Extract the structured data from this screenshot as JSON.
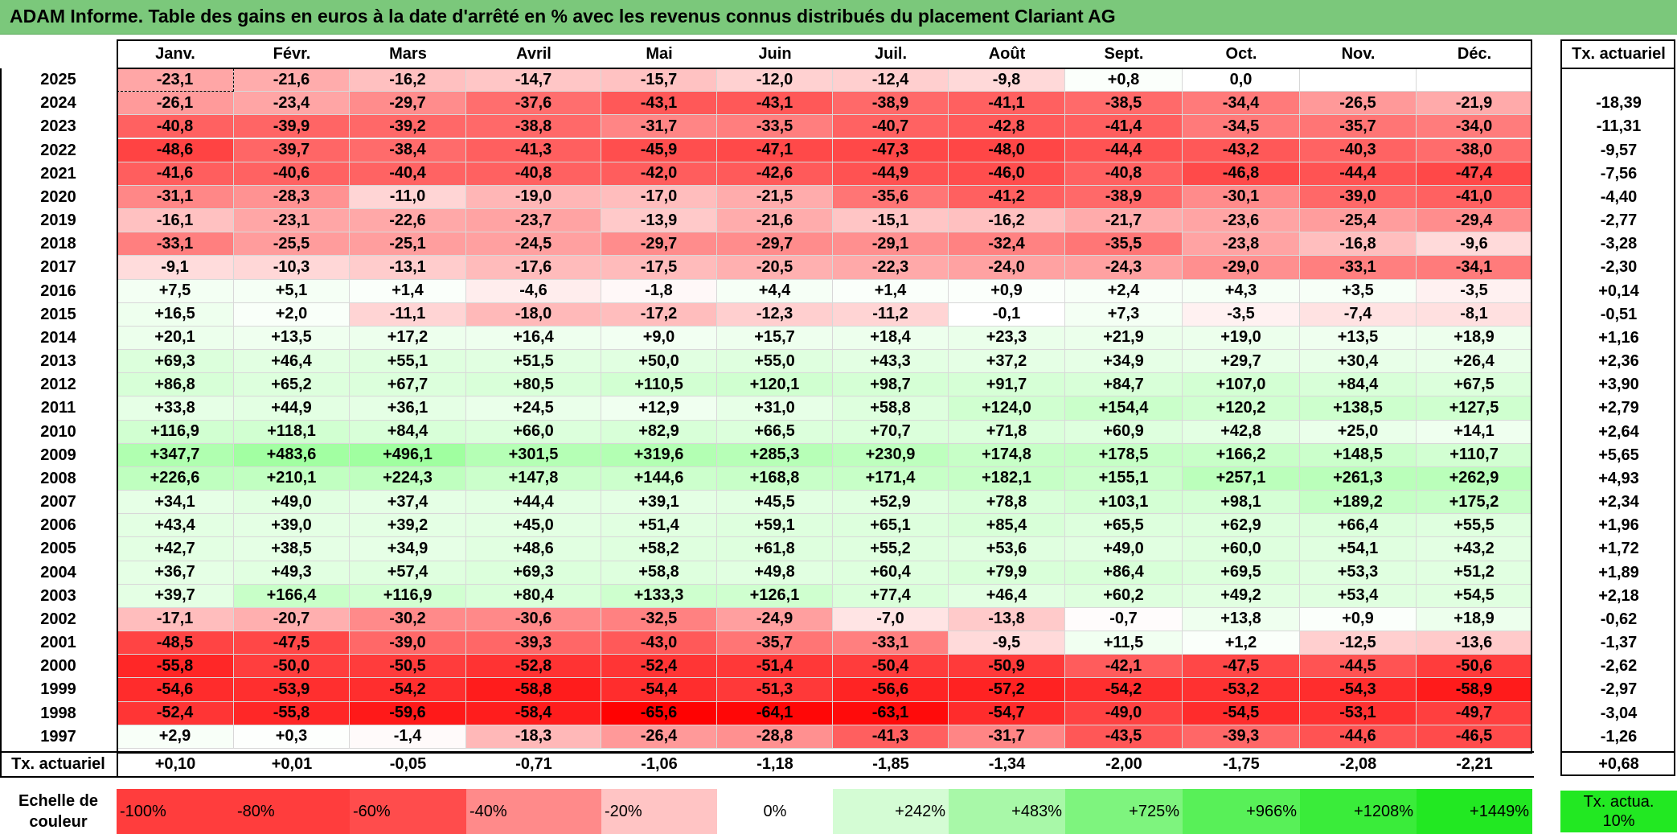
{
  "title": "ADAM Informe. Table des gains en euros à la date d'arrêté en % avec les revenus connus distribués du placement Clariant AG",
  "chart_data": {
    "type": "heatmap",
    "title": "ADAM Informe. Table des gains en euros à la date d'arrêté en % avec les revenus connus distribués du placement Clariant AG",
    "columns": [
      "Janv.",
      "Févr.",
      "Mars",
      "Avril",
      "Mai",
      "Juin",
      "Juil.",
      "Août",
      "Sept.",
      "Oct.",
      "Nov.",
      "Déc."
    ],
    "rate_column_label": "Tx. actuariel",
    "rows": [
      {
        "year": "2025",
        "values": [
          "-23,1",
          "-21,6",
          "-16,2",
          "-14,7",
          "-15,7",
          "-12,0",
          "-12,4",
          "-9,8",
          "+0,8",
          "0,0",
          "",
          ""
        ],
        "rate": ""
      },
      {
        "year": "2024",
        "values": [
          "-26,1",
          "-23,4",
          "-29,7",
          "-37,6",
          "-43,1",
          "-43,1",
          "-38,9",
          "-41,1",
          "-38,5",
          "-34,4",
          "-26,5",
          "-21,9"
        ],
        "rate": "-18,39"
      },
      {
        "year": "2023",
        "values": [
          "-40,8",
          "-39,9",
          "-39,2",
          "-38,8",
          "-31,7",
          "-33,5",
          "-40,7",
          "-42,8",
          "-41,4",
          "-34,5",
          "-35,7",
          "-34,0"
        ],
        "rate": "-11,31"
      },
      {
        "year": "2022",
        "values": [
          "-48,6",
          "-39,7",
          "-38,4",
          "-41,3",
          "-45,9",
          "-47,1",
          "-47,3",
          "-48,0",
          "-44,4",
          "-43,2",
          "-40,3",
          "-38,0"
        ],
        "rate": "-9,57"
      },
      {
        "year": "2021",
        "values": [
          "-41,6",
          "-40,6",
          "-40,4",
          "-40,8",
          "-42,0",
          "-42,6",
          "-44,9",
          "-46,0",
          "-40,8",
          "-46,8",
          "-44,4",
          "-47,4"
        ],
        "rate": "-7,56"
      },
      {
        "year": "2020",
        "values": [
          "-31,1",
          "-28,3",
          "-11,0",
          "-19,0",
          "-17,0",
          "-21,5",
          "-35,6",
          "-41,2",
          "-38,9",
          "-30,1",
          "-39,0",
          "-41,0"
        ],
        "rate": "-4,40"
      },
      {
        "year": "2019",
        "values": [
          "-16,1",
          "-23,1",
          "-22,6",
          "-23,7",
          "-13,9",
          "-21,6",
          "-15,1",
          "-16,2",
          "-21,7",
          "-23,6",
          "-25,4",
          "-29,4"
        ],
        "rate": "-2,77"
      },
      {
        "year": "2018",
        "values": [
          "-33,1",
          "-25,5",
          "-25,1",
          "-24,5",
          "-29,7",
          "-29,7",
          "-29,1",
          "-32,4",
          "-35,5",
          "-23,8",
          "-16,8",
          "-9,6"
        ],
        "rate": "-3,28"
      },
      {
        "year": "2017",
        "values": [
          "-9,1",
          "-10,3",
          "-13,1",
          "-17,6",
          "-17,5",
          "-20,5",
          "-22,3",
          "-24,0",
          "-24,3",
          "-29,0",
          "-33,1",
          "-34,1"
        ],
        "rate": "-2,30"
      },
      {
        "year": "2016",
        "values": [
          "+7,5",
          "+5,1",
          "+1,4",
          "-4,6",
          "-1,8",
          "+4,4",
          "+1,4",
          "+0,9",
          "+2,4",
          "+4,3",
          "+3,5",
          "-3,5"
        ],
        "rate": "+0,14"
      },
      {
        "year": "2015",
        "values": [
          "+16,5",
          "+2,0",
          "-11,1",
          "-18,0",
          "-17,2",
          "-12,3",
          "-11,2",
          "-0,1",
          "+7,3",
          "-3,5",
          "-7,4",
          "-8,1"
        ],
        "rate": "-0,51"
      },
      {
        "year": "2014",
        "values": [
          "+20,1",
          "+13,5",
          "+17,2",
          "+16,4",
          "+9,0",
          "+15,7",
          "+18,4",
          "+23,3",
          "+21,9",
          "+19,0",
          "+13,5",
          "+18,9"
        ],
        "rate": "+1,16"
      },
      {
        "year": "2013",
        "values": [
          "+69,3",
          "+46,4",
          "+55,1",
          "+51,5",
          "+50,0",
          "+55,0",
          "+43,3",
          "+37,2",
          "+34,9",
          "+29,7",
          "+30,4",
          "+26,4"
        ],
        "rate": "+2,36"
      },
      {
        "year": "2012",
        "values": [
          "+86,8",
          "+65,2",
          "+67,7",
          "+80,5",
          "+110,5",
          "+120,1",
          "+98,7",
          "+91,7",
          "+84,7",
          "+107,0",
          "+84,4",
          "+67,5"
        ],
        "rate": "+3,90"
      },
      {
        "year": "2011",
        "values": [
          "+33,8",
          "+44,9",
          "+36,1",
          "+24,5",
          "+12,9",
          "+31,0",
          "+58,8",
          "+124,0",
          "+154,4",
          "+120,2",
          "+138,5",
          "+127,5"
        ],
        "rate": "+2,79"
      },
      {
        "year": "2010",
        "values": [
          "+116,9",
          "+118,1",
          "+84,4",
          "+66,0",
          "+82,9",
          "+66,5",
          "+70,7",
          "+71,8",
          "+60,9",
          "+42,8",
          "+25,0",
          "+14,1"
        ],
        "rate": "+2,64"
      },
      {
        "year": "2009",
        "values": [
          "+347,7",
          "+483,6",
          "+496,1",
          "+301,5",
          "+319,6",
          "+285,3",
          "+230,9",
          "+174,8",
          "+178,5",
          "+166,2",
          "+148,5",
          "+110,7"
        ],
        "rate": "+5,65"
      },
      {
        "year": "2008",
        "values": [
          "+226,6",
          "+210,1",
          "+224,3",
          "+147,8",
          "+144,6",
          "+168,8",
          "+171,4",
          "+182,1",
          "+155,1",
          "+257,1",
          "+261,3",
          "+262,9"
        ],
        "rate": "+4,93"
      },
      {
        "year": "2007",
        "values": [
          "+34,1",
          "+49,0",
          "+37,4",
          "+44,4",
          "+39,1",
          "+45,5",
          "+52,9",
          "+78,8",
          "+103,1",
          "+98,1",
          "+189,2",
          "+175,2"
        ],
        "rate": "+2,34"
      },
      {
        "year": "2006",
        "values": [
          "+43,4",
          "+39,0",
          "+39,2",
          "+45,0",
          "+51,4",
          "+59,1",
          "+65,1",
          "+85,4",
          "+65,5",
          "+62,9",
          "+66,4",
          "+55,5"
        ],
        "rate": "+1,96"
      },
      {
        "year": "2005",
        "values": [
          "+42,7",
          "+38,5",
          "+34,9",
          "+48,6",
          "+58,2",
          "+61,8",
          "+55,2",
          "+53,6",
          "+49,0",
          "+60,0",
          "+54,1",
          "+43,2"
        ],
        "rate": "+1,72"
      },
      {
        "year": "2004",
        "values": [
          "+36,7",
          "+49,3",
          "+57,4",
          "+69,3",
          "+58,8",
          "+49,8",
          "+60,4",
          "+79,9",
          "+86,4",
          "+69,5",
          "+53,3",
          "+51,2"
        ],
        "rate": "+1,89"
      },
      {
        "year": "2003",
        "values": [
          "+39,7",
          "+166,4",
          "+116,9",
          "+80,4",
          "+133,3",
          "+126,1",
          "+77,4",
          "+46,4",
          "+60,2",
          "+49,2",
          "+53,4",
          "+54,5"
        ],
        "rate": "+2,18"
      },
      {
        "year": "2002",
        "values": [
          "-17,1",
          "-20,7",
          "-30,2",
          "-30,6",
          "-32,5",
          "-24,9",
          "-7,0",
          "-13,8",
          "-0,7",
          "+13,8",
          "+0,9",
          "+18,9"
        ],
        "rate": "-0,62"
      },
      {
        "year": "2001",
        "values": [
          "-48,5",
          "-47,5",
          "-39,0",
          "-39,3",
          "-43,0",
          "-35,7",
          "-33,1",
          "-9,5",
          "+11,5",
          "+1,2",
          "-12,5",
          "-13,6"
        ],
        "rate": "-1,37"
      },
      {
        "year": "2000",
        "values": [
          "-55,8",
          "-50,0",
          "-50,5",
          "-52,8",
          "-52,4",
          "-51,4",
          "-50,4",
          "-50,9",
          "-42,1",
          "-47,5",
          "-44,5",
          "-50,6"
        ],
        "rate": "-2,62"
      },
      {
        "year": "1999",
        "values": [
          "-54,6",
          "-53,9",
          "-54,2",
          "-58,8",
          "-54,4",
          "-51,3",
          "-56,6",
          "-57,2",
          "-54,2",
          "-53,2",
          "-54,3",
          "-58,9"
        ],
        "rate": "-2,97"
      },
      {
        "year": "1998",
        "values": [
          "-52,4",
          "-55,8",
          "-59,6",
          "-58,4",
          "-65,6",
          "-64,1",
          "-63,1",
          "-54,7",
          "-49,0",
          "-54,5",
          "-53,1",
          "-49,7"
        ],
        "rate": "-3,04"
      },
      {
        "year": "1997",
        "values": [
          "+2,9",
          "+0,3",
          "-1,4",
          "-18,3",
          "-26,4",
          "-28,8",
          "-41,3",
          "-31,7",
          "-43,5",
          "-39,3",
          "-44,6",
          "-46,5"
        ],
        "rate": "-1,26"
      }
    ],
    "footer_label": "Tx. actuariel",
    "footer_values": [
      "+0,10",
      "+0,01",
      "-0,05",
      "-0,71",
      "-1,06",
      "-1,18",
      "-1,85",
      "-1,34",
      "-2,00",
      "-1,75",
      "-2,08",
      "-2,21"
    ],
    "footer_rate": "+0,68",
    "legend_label": "Echelle de couleur",
    "legend": [
      {
        "label": "-100%",
        "color": "#ff3d3d"
      },
      {
        "label": "-80%",
        "color": "#ff3d3d"
      },
      {
        "label": "-60%",
        "color": "#ff4c4c"
      },
      {
        "label": "-40%",
        "color": "#ff8a8a"
      },
      {
        "label": "-20%",
        "color": "#ffc4c4"
      },
      {
        "label": "0%",
        "color": "#ffffff"
      },
      {
        "label": "+242%",
        "color": "#d4fcd4"
      },
      {
        "label": "+483%",
        "color": "#a8f8a8"
      },
      {
        "label": "+725%",
        "color": "#7ef47e"
      },
      {
        "label": "+966%",
        "color": "#58f058"
      },
      {
        "label": "+1208%",
        "color": "#3aec3a"
      },
      {
        "label": "+1449%",
        "color": "#22e822"
      }
    ],
    "legend_rate_label": "Tx. actua. 10%",
    "legend_rate_color": "#22e822"
  }
}
